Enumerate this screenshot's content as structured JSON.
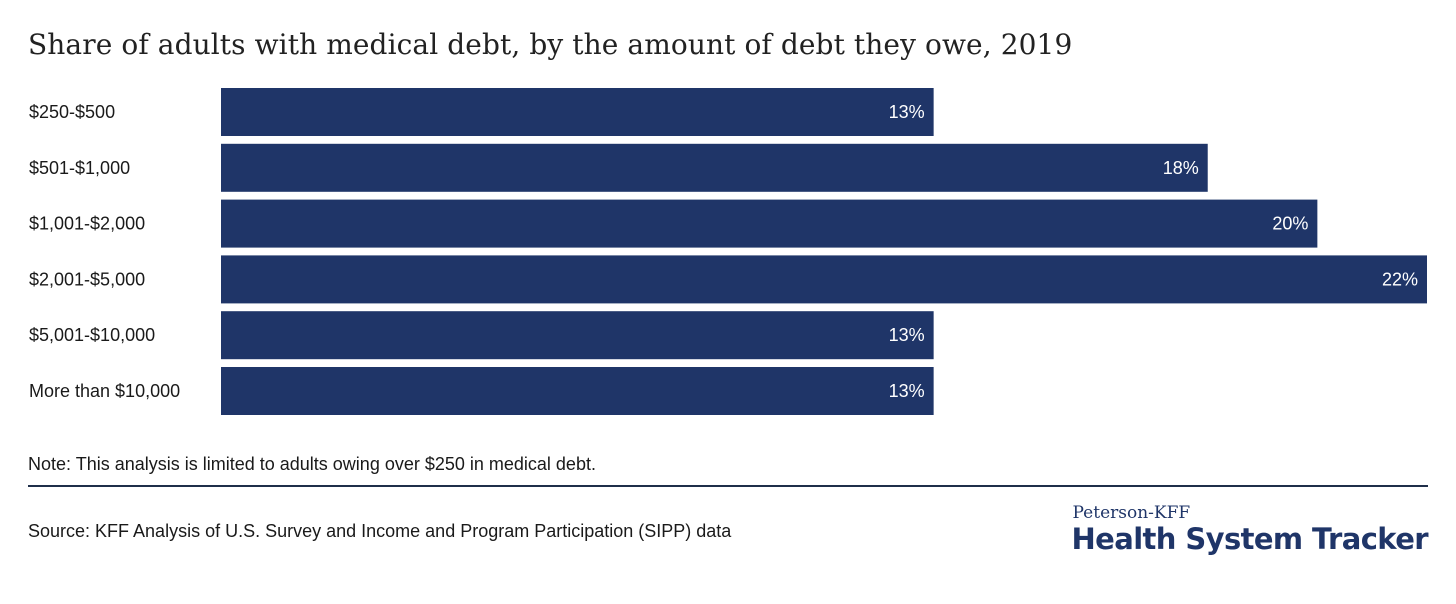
{
  "chart_data": {
    "type": "bar",
    "orientation": "horizontal",
    "title": "Share of adults with medical debt, by the amount of debt they owe, 2019",
    "categories": [
      "$250-$500",
      "$501-$1,000",
      "$1,001-$2,000",
      "$2,001-$5,000",
      "$5,001-$10,000",
      "More than $10,000"
    ],
    "values": [
      13,
      18,
      20,
      22,
      13,
      13
    ],
    "value_labels": [
      "13%",
      "18%",
      "20%",
      "22%",
      "13%",
      "13%"
    ],
    "unit": "%",
    "bar_color": "#1f3568",
    "grid": false,
    "legend": "none"
  },
  "note": "Note: This analysis is limited to adults owing over $250 in medical debt.",
  "source": "Source: KFF Analysis of U.S. Survey and Income and Program Participation (SIPP) data",
  "logo": {
    "top_text": "Peterson-KFF",
    "main_text": "Health System Tracker",
    "color": "#1f3568"
  }
}
